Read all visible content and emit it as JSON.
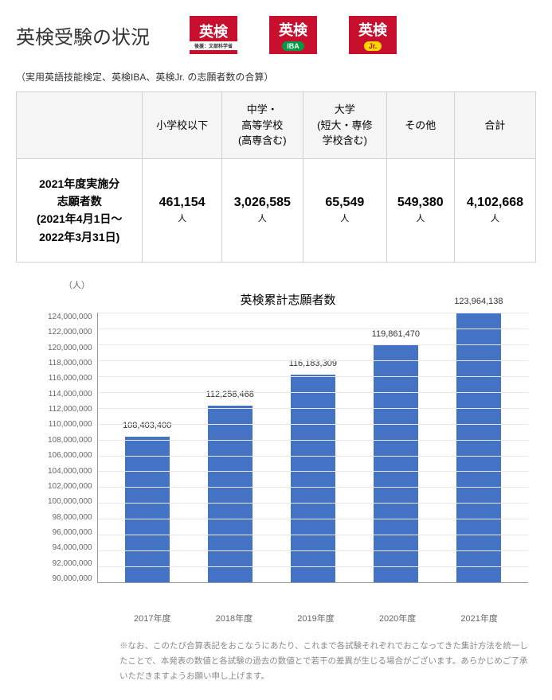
{
  "header": {
    "title": "英検受験の状況",
    "logos": [
      {
        "main": "英検",
        "sub": "後援：文部科学省",
        "badge": null
      },
      {
        "main": "英検",
        "sub": null,
        "badge": "IBA",
        "badgeClass": ""
      },
      {
        "main": "英検",
        "sub": null,
        "badge": "Jr.",
        "badgeClass": "jr"
      }
    ]
  },
  "subtitle": "（実用英語技能検定、英検IBA、英検Jr. の志願者数の合算）",
  "table": {
    "columns": [
      "小学校以下",
      "中学・\n高等学校\n(高専含む)",
      "大学\n(短大・専修\n学校含む)",
      "その他",
      "合計"
    ],
    "row_header": "2021年度実施分\n志願者数\n(2021年4月1日～\n2022年3月31日)",
    "values": [
      "461,154",
      "3,026,585",
      "65,549",
      "549,380",
      "4,102,668"
    ],
    "unit": "人"
  },
  "chart": {
    "type": "bar",
    "ylabel": "（人）",
    "title": "英検累計志願者数",
    "ylim": [
      90000000,
      124000000
    ],
    "ytick_step": 2000000,
    "yticks": [
      "124,000,000",
      "122,000,000",
      "120,000,000",
      "118,000,000",
      "116,000,000",
      "114,000,000",
      "112,000,000",
      "110,000,000",
      "108,000,000",
      "106,000,000",
      "104,000,000",
      "102,000,000",
      "100,000,000",
      "98,000,000",
      "96,000,000",
      "94,000,000",
      "92,000,000",
      "90,000,000"
    ],
    "categories": [
      "2017年度",
      "2018年度",
      "2019年度",
      "2020年度",
      "2021年度"
    ],
    "values": [
      108403400,
      112258468,
      116183309,
      119861470,
      123964138
    ],
    "value_labels": [
      "108,403,400",
      "112,258,468",
      "116,183,309",
      "119,861,470",
      "123,964,138"
    ],
    "bar_color": "#4472c4",
    "grid_color": "#e8e8e8",
    "background_color": "#ffffff"
  },
  "footnote": "※なお、このたび合算表記をおこなうにあたり、これまで各試験それぞれでおこなってきた集計方法を統一したことで、本発表の数値と各試験の過去の数値とで若干の差異が生じる場合がございます。あらかじめご了承いただきますようお願い申し上げます。"
}
